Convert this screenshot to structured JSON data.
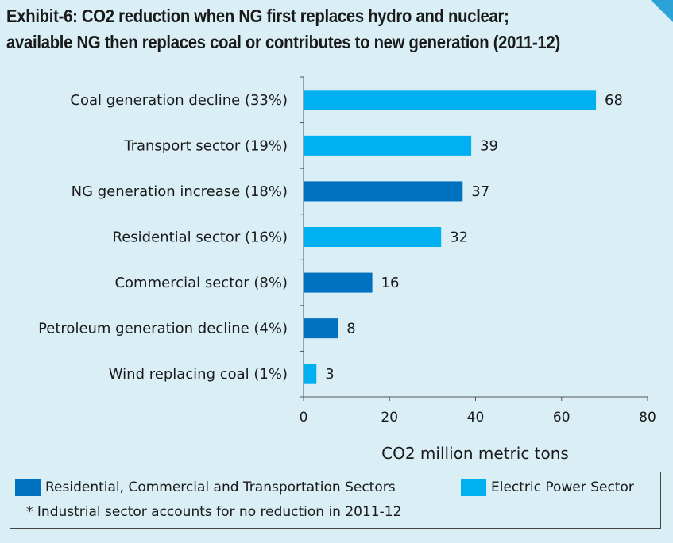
{
  "title_line1": "Exhibit-6: CO2 reduction when NG first replaces hydro and nuclear;",
  "title_line2": "available NG then replaces coal or contributes to new generation (2011-12)",
  "colors": {
    "background": "#d9eef5",
    "electric_power": "#00b0f0",
    "residential_commercial_transport": "#0070c0",
    "corner_accent": "#2ba3d9"
  },
  "legend": {
    "items": [
      {
        "label": "Residential, Commercial and Transportation Sectors",
        "color": "#0070c0"
      },
      {
        "label": "Electric Power Sector",
        "color": "#00b0f0"
      }
    ],
    "note": "*  Industrial sector accounts for  no reduction in 2011-12"
  },
  "chart_data": {
    "type": "bar",
    "orientation": "horizontal",
    "categories": [
      "Coal generation decline (33%)",
      "Transport sector (19%)",
      "NG generation increase (18%)",
      "Residential sector (16%)",
      "Commercial sector (8%)",
      "Petroleum generation decline (4%)",
      "Wind replacing coal (1%)"
    ],
    "values": [
      68,
      39,
      37,
      32,
      16,
      8,
      3
    ],
    "sector": [
      "Electric Power Sector",
      "Electric Power Sector",
      "Residential, Commercial and Transportation Sectors",
      "Electric Power Sector",
      "Residential, Commercial and Transportation Sectors",
      "Residential, Commercial and Transportation Sectors",
      "Electric Power Sector"
    ],
    "xlabel": "CO2 million metric tons",
    "xlim": [
      0,
      80
    ],
    "xticks": [
      0,
      20,
      40,
      60,
      80
    ],
    "grid": false,
    "legend_position": "bottom"
  }
}
